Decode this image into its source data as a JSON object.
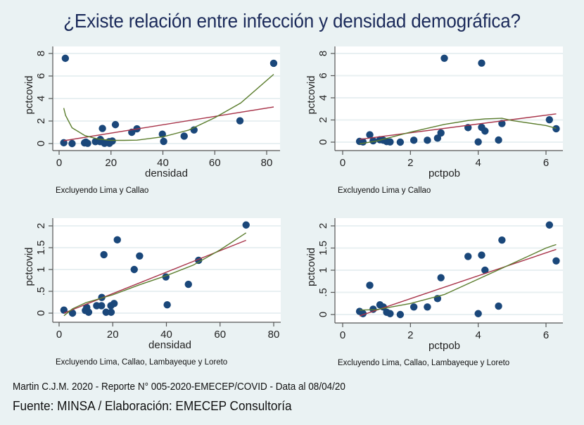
{
  "title": "¿Existe relación entre infección y densidad demográfica?",
  "footer": {
    "line1": "Martin C.J.M. 2020 - Reporte N° 005-2020-EMECEP/COVID - Data al 08/04/20",
    "line2": "Fuente: MINSA / Elaboración: EMECEP Consultoría"
  },
  "colors": {
    "background": "#eaf2f3",
    "plot_background": "#ffffff",
    "gridline": "#e8f0f2",
    "marker": "#1a477a",
    "linear_fit": "#a8344a",
    "lowess_fit": "#5b7d2d"
  },
  "chart_data": [
    {
      "type": "scatter",
      "position": "top-left",
      "xlabel": "densidad",
      "ylabel": "pctcovid",
      "note": "Excluyendo Lima y Callao",
      "xlim": [
        0,
        80
      ],
      "ylim": [
        0,
        8
      ],
      "xticks": [
        0,
        20,
        40,
        60,
        80
      ],
      "yticks": [
        0,
        2,
        4,
        6,
        8
      ],
      "ytick_labels": [
        "0",
        "2",
        "4",
        "6",
        "8"
      ],
      "grid": true,
      "points": [
        [
          1.8,
          0.07
        ],
        [
          2.4,
          7.57
        ],
        [
          5,
          0.0
        ],
        [
          9.8,
          0.06
        ],
        [
          10.3,
          0.13
        ],
        [
          11,
          0.02
        ],
        [
          14,
          0.17
        ],
        [
          15.8,
          0.17
        ],
        [
          15.9,
          0.36
        ],
        [
          16.7,
          1.34
        ],
        [
          17.5,
          0.02
        ],
        [
          19.3,
          0.17
        ],
        [
          19.4,
          0.02
        ],
        [
          20.5,
          0.22
        ],
        [
          21.7,
          1.68
        ],
        [
          28,
          1.0
        ],
        [
          30,
          1.31
        ],
        [
          39.8,
          0.83
        ],
        [
          40.3,
          0.19
        ],
        [
          48.2,
          0.66
        ],
        [
          52,
          1.21
        ],
        [
          69.7,
          2.02
        ],
        [
          82.7,
          7.13
        ]
      ],
      "linear_fit": [
        [
          1.8,
          0.25
        ],
        [
          82.7,
          3.25
        ]
      ],
      "lowess_fit": [
        [
          1.8,
          3.15
        ],
        [
          2.5,
          2.5
        ],
        [
          5,
          1.4
        ],
        [
          10,
          0.7
        ],
        [
          15,
          0.4
        ],
        [
          20,
          0.28
        ],
        [
          25,
          0.28
        ],
        [
          30,
          0.3
        ],
        [
          40,
          0.6
        ],
        [
          50,
          1.2
        ],
        [
          60,
          2.3
        ],
        [
          70,
          3.6
        ],
        [
          82.7,
          6.15
        ]
      ]
    },
    {
      "type": "scatter",
      "position": "top-right",
      "xlabel": "pctpob",
      "ylabel": "pctcovid",
      "note": "Excluyendo Lima y Callao",
      "xlim": [
        0,
        6
      ],
      "ylim": [
        0,
        8
      ],
      "xticks": [
        0,
        2,
        4,
        6
      ],
      "yticks": [
        0,
        2,
        4,
        6,
        8
      ],
      "ytick_labels": [
        "0",
        "2",
        "4",
        "6",
        "8"
      ],
      "grid": true,
      "points": [
        [
          0.5,
          0.07
        ],
        [
          0.6,
          0.02
        ],
        [
          0.8,
          0.66
        ],
        [
          0.9,
          0.12
        ],
        [
          1.1,
          0.22
        ],
        [
          1.2,
          0.17
        ],
        [
          1.3,
          0.05
        ],
        [
          1.4,
          0.02
        ],
        [
          1.7,
          0.0
        ],
        [
          2.1,
          0.17
        ],
        [
          2.5,
          0.17
        ],
        [
          2.8,
          0.36
        ],
        [
          2.9,
          0.83
        ],
        [
          3.0,
          7.57
        ],
        [
          3.7,
          1.31
        ],
        [
          4.0,
          0.02
        ],
        [
          4.1,
          1.34
        ],
        [
          4.1,
          7.13
        ],
        [
          4.2,
          1.0
        ],
        [
          4.6,
          0.19
        ],
        [
          4.7,
          1.68
        ],
        [
          6.1,
          2.02
        ],
        [
          6.3,
          1.21
        ]
      ],
      "linear_fit": [
        [
          0.5,
          0.25
        ],
        [
          6.3,
          2.55
        ]
      ],
      "lowess_fit": [
        [
          0.5,
          -0.15
        ],
        [
          1,
          0.1
        ],
        [
          2,
          0.9
        ],
        [
          3,
          1.6
        ],
        [
          3.7,
          1.95
        ],
        [
          4.2,
          2.1
        ],
        [
          4.7,
          2.15
        ],
        [
          5,
          1.95
        ],
        [
          6,
          1.5
        ],
        [
          6.3,
          1.25
        ]
      ]
    },
    {
      "type": "scatter",
      "position": "bottom-left",
      "xlabel": "densidad",
      "ylabel": "pctcovid",
      "note": "Excluyendo Lima, Callao, Lambayeque y Loreto",
      "xlim": [
        0,
        80
      ],
      "ylim": [
        0,
        2
      ],
      "xticks": [
        0,
        20,
        40,
        60,
        80
      ],
      "yticks": [
        0,
        0.5,
        1,
        1.5,
        2
      ],
      "ytick_labels": [
        "0",
        ".5",
        "1",
        "1.5",
        "2"
      ],
      "grid": true,
      "points": [
        [
          1.8,
          0.07
        ],
        [
          5,
          0.0
        ],
        [
          9.8,
          0.06
        ],
        [
          10.3,
          0.13
        ],
        [
          11,
          0.02
        ],
        [
          14,
          0.17
        ],
        [
          15.8,
          0.17
        ],
        [
          15.9,
          0.36
        ],
        [
          16.7,
          1.34
        ],
        [
          17.5,
          0.02
        ],
        [
          19.3,
          0.17
        ],
        [
          19.4,
          0.02
        ],
        [
          20.5,
          0.22
        ],
        [
          21.7,
          1.68
        ],
        [
          28,
          1.0
        ],
        [
          30,
          1.31
        ],
        [
          39.8,
          0.83
        ],
        [
          40.3,
          0.19
        ],
        [
          48.2,
          0.66
        ],
        [
          52,
          1.21
        ],
        [
          69.7,
          2.02
        ]
      ],
      "linear_fit": [
        [
          1.8,
          0.0
        ],
        [
          69.7,
          1.67
        ]
      ],
      "lowess_fit": [
        [
          1.8,
          -0.06
        ],
        [
          5,
          0.1
        ],
        [
          10,
          0.24
        ],
        [
          20,
          0.42
        ],
        [
          30,
          0.65
        ],
        [
          40,
          0.86
        ],
        [
          50,
          1.1
        ],
        [
          60,
          1.45
        ],
        [
          69.7,
          1.84
        ]
      ]
    },
    {
      "type": "scatter",
      "position": "bottom-right",
      "xlabel": "pctpob",
      "ylabel": "pctcovid",
      "note": "Excluyendo Lima, Callao, Lambayeque y Loreto",
      "xlim": [
        0,
        6
      ],
      "ylim": [
        0,
        2
      ],
      "xticks": [
        0,
        2,
        4,
        6
      ],
      "yticks": [
        0,
        0.5,
        1,
        1.5,
        2
      ],
      "ytick_labels": [
        "0",
        ".5",
        "1",
        "1.5",
        "2"
      ],
      "grid": true,
      "points": [
        [
          0.5,
          0.07
        ],
        [
          0.6,
          0.02
        ],
        [
          0.8,
          0.66
        ],
        [
          0.9,
          0.12
        ],
        [
          1.1,
          0.22
        ],
        [
          1.2,
          0.17
        ],
        [
          1.3,
          0.05
        ],
        [
          1.4,
          0.02
        ],
        [
          1.7,
          0.0
        ],
        [
          2.1,
          0.17
        ],
        [
          2.5,
          0.17
        ],
        [
          2.8,
          0.36
        ],
        [
          2.9,
          0.83
        ],
        [
          3.7,
          1.31
        ],
        [
          4.0,
          0.02
        ],
        [
          4.1,
          1.34
        ],
        [
          4.2,
          1.0
        ],
        [
          4.6,
          0.19
        ],
        [
          4.7,
          1.68
        ],
        [
          6.1,
          2.02
        ],
        [
          6.3,
          1.21
        ]
      ],
      "linear_fit": [
        [
          0.5,
          -0.03
        ],
        [
          6.3,
          1.47
        ]
      ],
      "lowess_fit": [
        [
          0.5,
          0.1
        ],
        [
          1,
          0.11
        ],
        [
          1.5,
          0.18
        ],
        [
          2,
          0.25
        ],
        [
          3,
          0.45
        ],
        [
          4,
          0.8
        ],
        [
          5,
          1.15
        ],
        [
          6,
          1.5
        ],
        [
          6.3,
          1.58
        ]
      ]
    }
  ]
}
